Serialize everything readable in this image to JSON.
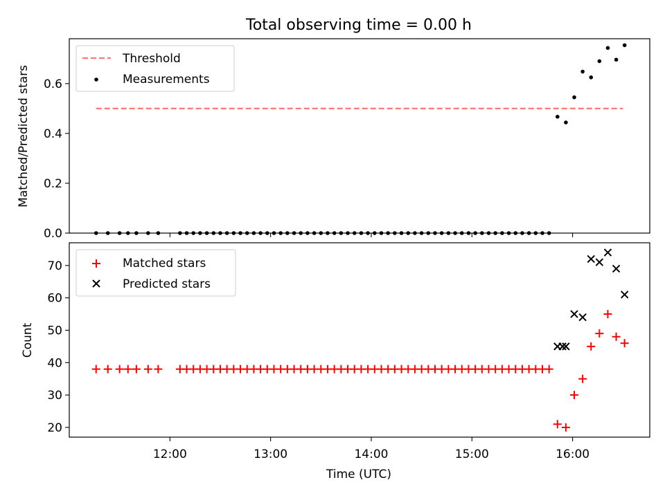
{
  "figure_title": "Total observing time = 0.00 h",
  "xlabel": "Time (UTC)",
  "chart_data": [
    {
      "type": "scatter",
      "panel": "top",
      "ylabel": "Matched/Predicted stars",
      "ylim": [
        0,
        0.78
      ],
      "yticks": [
        0.0,
        0.2,
        0.4,
        0.6
      ],
      "ytick_labels": [
        "0.0",
        "0.2",
        "0.4",
        "0.6"
      ],
      "xlim": [
        "11:00",
        "16:46"
      ],
      "xticks": [
        "12:00",
        "13:00",
        "14:00",
        "15:00",
        "16:00"
      ],
      "show_xtick_labels": false,
      "legend": {
        "placement": "upper left",
        "entries": [
          "Threshold",
          "Measurements"
        ]
      },
      "series": [
        {
          "name": "Threshold",
          "kind": "dashed-line",
          "color": "#ff7777",
          "x": [
            "11:16",
            "16:30"
          ],
          "y": [
            0.5,
            0.5
          ]
        },
        {
          "name": "Measurements",
          "kind": "dot",
          "color": "#000000",
          "x": [
            "11:16",
            "11:23",
            "11:30",
            "11:35",
            "11:40",
            "11:47",
            "11:53",
            "12:06",
            "12:10",
            "12:14",
            "12:18",
            "12:22",
            "12:26",
            "12:30",
            "12:34",
            "12:38",
            "12:42",
            "12:46",
            "12:50",
            "12:54",
            "12:58",
            "13:02",
            "13:06",
            "13:10",
            "13:14",
            "13:18",
            "13:22",
            "13:26",
            "13:30",
            "13:34",
            "13:38",
            "13:42",
            "13:46",
            "13:50",
            "13:54",
            "13:58",
            "14:02",
            "14:06",
            "14:10",
            "14:14",
            "14:18",
            "14:22",
            "14:26",
            "14:30",
            "14:34",
            "14:38",
            "14:42",
            "14:46",
            "14:50",
            "14:54",
            "14:58",
            "15:02",
            "15:06",
            "15:10",
            "15:14",
            "15:18",
            "15:22",
            "15:26",
            "15:30",
            "15:34",
            "15:38",
            "15:42",
            "15:46",
            "15:51",
            "15:56",
            "16:01",
            "16:06",
            "16:11",
            "16:16",
            "16:21",
            "16:26",
            "16:31"
          ],
          "y": [
            0,
            0,
            0,
            0,
            0,
            0,
            0,
            0,
            0,
            0,
            0,
            0,
            0,
            0,
            0,
            0,
            0,
            0,
            0,
            0,
            0,
            0,
            0,
            0,
            0,
            0,
            0,
            0,
            0,
            0,
            0,
            0,
            0,
            0,
            0,
            0,
            0,
            0,
            0,
            0,
            0,
            0,
            0,
            0,
            0,
            0,
            0,
            0,
            0,
            0,
            0,
            0,
            0,
            0,
            0,
            0,
            0,
            0,
            0,
            0,
            0,
            0,
            0,
            0.467,
            0.444,
            0.545,
            0.648,
            0.625,
            0.69,
            0.743,
            0.696,
            0.754
          ]
        }
      ]
    },
    {
      "type": "scatter",
      "panel": "bottom",
      "ylabel": "Count",
      "ylim": [
        17,
        77
      ],
      "yticks": [
        20,
        30,
        40,
        50,
        60,
        70
      ],
      "ytick_labels": [
        "20",
        "30",
        "40",
        "50",
        "60",
        "70"
      ],
      "xlim": [
        "11:00",
        "16:46"
      ],
      "xticks": [
        "12:00",
        "13:00",
        "14:00",
        "15:00",
        "16:00"
      ],
      "xtick_labels": [
        "12:00",
        "13:00",
        "14:00",
        "15:00",
        "16:00"
      ],
      "legend": {
        "placement": "upper left",
        "entries": [
          "Matched stars",
          "Predicted stars"
        ]
      },
      "series": [
        {
          "name": "Matched stars",
          "kind": "plus",
          "color": "#ff0000",
          "x": [
            "11:16",
            "11:23",
            "11:30",
            "11:35",
            "11:40",
            "11:47",
            "11:53",
            "12:06",
            "12:10",
            "12:14",
            "12:18",
            "12:22",
            "12:26",
            "12:30",
            "12:34",
            "12:38",
            "12:42",
            "12:46",
            "12:50",
            "12:54",
            "12:58",
            "13:02",
            "13:06",
            "13:10",
            "13:14",
            "13:18",
            "13:22",
            "13:26",
            "13:30",
            "13:34",
            "13:38",
            "13:42",
            "13:46",
            "13:50",
            "13:54",
            "13:58",
            "14:02",
            "14:06",
            "14:10",
            "14:14",
            "14:18",
            "14:22",
            "14:26",
            "14:30",
            "14:34",
            "14:38",
            "14:42",
            "14:46",
            "14:50",
            "14:54",
            "14:58",
            "15:02",
            "15:06",
            "15:10",
            "15:14",
            "15:18",
            "15:22",
            "15:26",
            "15:30",
            "15:34",
            "15:38",
            "15:42",
            "15:46",
            "15:51",
            "15:56",
            "16:01",
            "16:06",
            "16:11",
            "16:16",
            "16:21",
            "16:26",
            "16:31"
          ],
          "y": [
            38,
            38,
            38,
            38,
            38,
            38,
            38,
            38,
            38,
            38,
            38,
            38,
            38,
            38,
            38,
            38,
            38,
            38,
            38,
            38,
            38,
            38,
            38,
            38,
            38,
            38,
            38,
            38,
            38,
            38,
            38,
            38,
            38,
            38,
            38,
            38,
            38,
            38,
            38,
            38,
            38,
            38,
            38,
            38,
            38,
            38,
            38,
            38,
            38,
            38,
            38,
            38,
            38,
            38,
            38,
            38,
            38,
            38,
            38,
            38,
            38,
            38,
            38,
            21,
            20,
            30,
            35,
            45,
            49,
            55,
            48,
            46
          ]
        },
        {
          "name": "Predicted stars",
          "kind": "x",
          "color": "#000000",
          "x": [
            "15:51",
            "15:54",
            "15:56",
            "16:01",
            "16:06",
            "16:11",
            "16:16",
            "16:21",
            "16:26",
            "16:31"
          ],
          "y": [
            45,
            45,
            45,
            55,
            54,
            72,
            71,
            74,
            69,
            61
          ]
        }
      ]
    }
  ]
}
